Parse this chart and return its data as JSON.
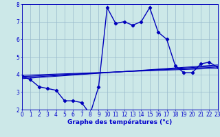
{
  "x": [
    0,
    1,
    2,
    3,
    4,
    5,
    6,
    7,
    8,
    9,
    10,
    11,
    12,
    13,
    14,
    15,
    16,
    17,
    18,
    19,
    20,
    21,
    22,
    23
  ],
  "y_main": [
    3.9,
    3.7,
    3.3,
    3.2,
    3.1,
    2.5,
    2.5,
    2.4,
    1.75,
    3.3,
    7.8,
    6.9,
    7.0,
    6.8,
    7.0,
    7.8,
    6.4,
    6.0,
    4.5,
    4.1,
    4.1,
    4.6,
    4.7,
    4.4
  ],
  "trend_lines": [
    {
      "x0": 0,
      "y0": 3.95,
      "x1": 23,
      "y1": 4.35
    },
    {
      "x0": 0,
      "y0": 3.88,
      "x1": 23,
      "y1": 4.42
    },
    {
      "x0": 0,
      "y0": 3.82,
      "x1": 23,
      "y1": 4.48
    },
    {
      "x0": 0,
      "y0": 3.76,
      "x1": 23,
      "y1": 4.54
    }
  ],
  "line_color": "#0000bb",
  "marker": "D",
  "marker_size": 2.2,
  "bg_color": "#cce8e8",
  "grid_color": "#99bbcc",
  "xlabel": "Graphe des températures (°c)",
  "xlim": [
    0,
    23
  ],
  "ylim": [
    2,
    8
  ],
  "yticks": [
    2,
    3,
    4,
    5,
    6,
    7,
    8
  ],
  "xticks": [
    0,
    1,
    2,
    3,
    4,
    5,
    6,
    7,
    8,
    9,
    10,
    11,
    12,
    13,
    14,
    15,
    16,
    17,
    18,
    19,
    20,
    21,
    22,
    23
  ],
  "xlabel_fontsize": 6.5,
  "tick_fontsize": 5.5,
  "xlabel_color": "#0000cc",
  "tick_color": "#0000cc",
  "linewidth": 1.0,
  "trend_linewidth": 0.8
}
